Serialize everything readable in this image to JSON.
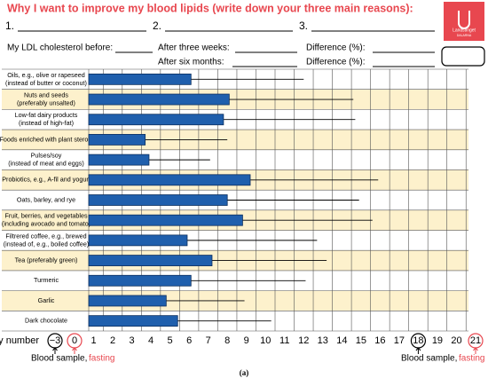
{
  "chart_data": {
    "type": "bar",
    "orientation": "horizontal",
    "title": "Why I want to improve my blood lipids (write down your three main reasons):",
    "reasons": [
      "1.",
      "2.",
      "3."
    ],
    "form_labels": [
      "My LDL cholesterol before:",
      "After three weeks:",
      "Difference (%):",
      "After six months:",
      "Difference (%):"
    ],
    "logo": [
      "Landstinget",
      "DALARNA"
    ],
    "categories": [
      [
        "Oils, e.g., olive or rapeseed",
        "(instead of butter or coconut)"
      ],
      [
        "Nuts and seeds",
        "(preferably unsalted)"
      ],
      [
        "Low-fat dairy products",
        "(instead of high-fat)"
      ],
      [
        "Foods enriched with plant sterols"
      ],
      [
        "Pulses/soy",
        "(instead of meat and eggs)"
      ],
      [
        "Probiotics, e.g., A-fil and yogurt"
      ],
      [
        "Oats, barley, and rye"
      ],
      [
        "Fruit, berries, and vegetables",
        "(including avocado and tomato)"
      ],
      [
        "Filtrered coffee, e.g., brewed",
        "(instead of, e.g., boiled coffee)"
      ],
      [
        "Tea (preferably green)"
      ],
      [
        "Turmeric"
      ],
      [
        "Garlic"
      ],
      [
        "Dark chocolate"
      ]
    ],
    "values": [
      6.1,
      8.1,
      7.8,
      3.7,
      3.9,
      9.2,
      8.0,
      8.8,
      5.9,
      7.2,
      6.1,
      4.8,
      5.4
    ],
    "errors": [
      5.9,
      6.5,
      6.9,
      4.3,
      3.2,
      6.7,
      6.9,
      6.8,
      6.8,
      6.0,
      6.0,
      4.1,
      4.9
    ],
    "color": "#1f5fad",
    "row_colors": [
      "#ffffff",
      "#fdf1cc"
    ],
    "x_label": "Day number",
    "start_day_label": "−3",
    "xlim": [
      -0.75,
      21.25
    ],
    "xticks": [
      0,
      1,
      2,
      3,
      4,
      5,
      6,
      7,
      8,
      9,
      10,
      11,
      12,
      13,
      14,
      15,
      16,
      17,
      18,
      19,
      20,
      21
    ],
    "circled_ticks": [
      0,
      18,
      21
    ],
    "circle_colors": [
      "#e8474f",
      "#000000",
      "#e8474f"
    ],
    "annotations": [
      "Blood sample,",
      "fasting",
      "Blood sample,",
      "fasting"
    ],
    "highlight_color": "#e8474f",
    "panel_label": "(a)",
    "grid": true
  }
}
